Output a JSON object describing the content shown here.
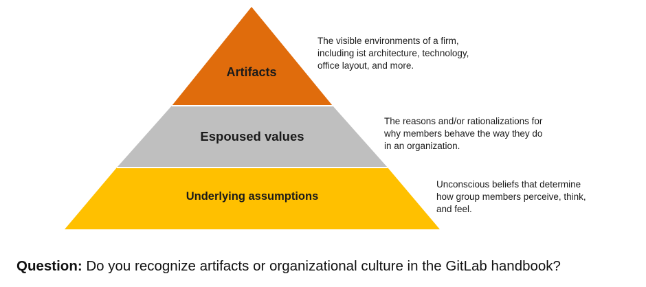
{
  "colors": {
    "artifacts": "#E06C0C",
    "espoused_values": "#BFBFBF",
    "underlying_assumptions": "#FFC000",
    "separator": "#FFFFFF"
  },
  "layers": [
    {
      "label": "Artifacts",
      "description": [
        "The visible environments of a firm,",
        "including ist architecture, technology,",
        "office layout, and more."
      ]
    },
    {
      "label": "Espoused values",
      "description": [
        "The reasons and/or rationalizations for",
        "why members behave the way they do",
        "in an organization."
      ]
    },
    {
      "label": "Underlying assumptions",
      "description": [
        "Unconscious beliefs that determine",
        "how group members perceive, think,",
        "and feel."
      ]
    }
  ],
  "question": {
    "prefix": "Question:",
    "text": " Do you recognize artifacts or organizational culture in the GitLab handbook?"
  }
}
